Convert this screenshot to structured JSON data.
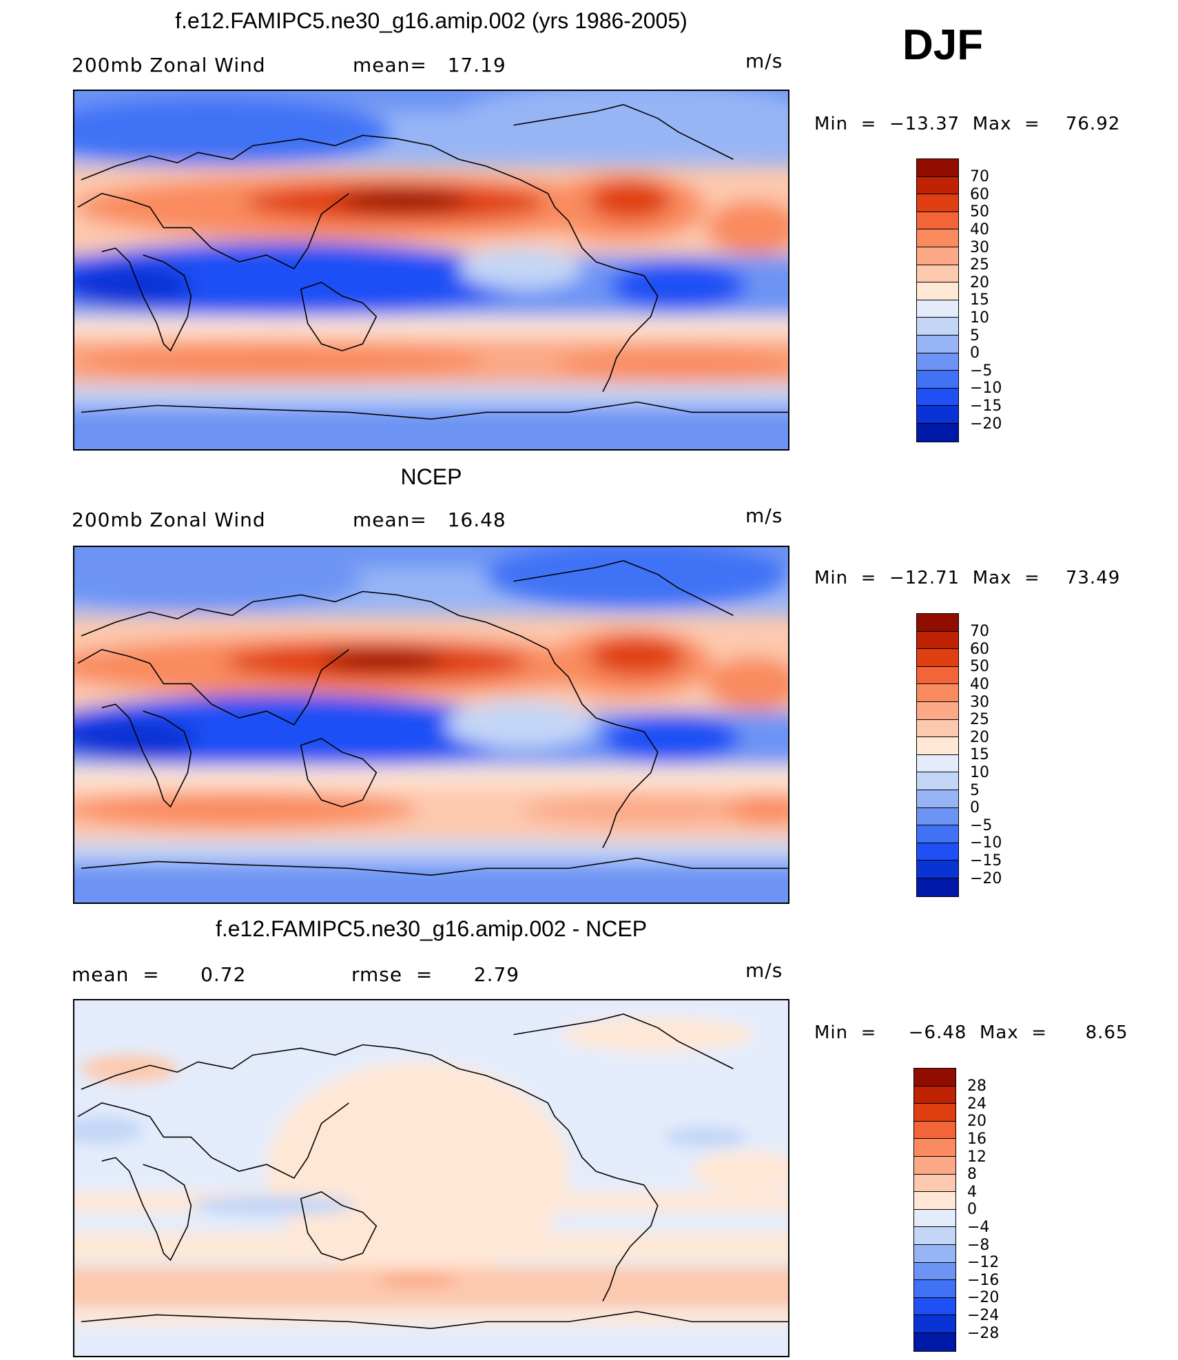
{
  "season": "DJF",
  "colors": {
    "levels_wind": [
      "#08007f",
      "#0018a8",
      "#0a33d6",
      "#1f4ff5",
      "#4172f5",
      "#6d94f4",
      "#97b5f5",
      "#c3d6f6",
      "#e4ecfb",
      "#ffe7d6",
      "#fdc9ae",
      "#fba987",
      "#f98b5f",
      "#f36438",
      "#e04011",
      "#c02204",
      "#900d00"
    ],
    "levels_diff": [
      "#08007f",
      "#0018a8",
      "#0a33d6",
      "#1f4ff5",
      "#4172f5",
      "#6d94f4",
      "#97b5f5",
      "#c3d6f6",
      "#e4ecfb",
      "#ffe7d6",
      "#fdc9ae",
      "#fba987",
      "#f98b5f",
      "#f36438",
      "#e04011",
      "#c02204",
      "#900d00"
    ]
  },
  "panels": [
    {
      "title": "f.e12.FAMIPC5.ne30_g16.amip.002 (yrs 1986-2005)",
      "left_label": "200mb Zonal Wind",
      "mid_label": "mean=   17.19",
      "units": "m/s",
      "minmax": "Min  =  −13.37  Max  =    76.92",
      "colorbar": [
        "70",
        "60",
        "50",
        "40",
        "30",
        "25",
        "20",
        "15",
        "10",
        "5",
        "0",
        "−5",
        "−10",
        "−15",
        "−20"
      ]
    },
    {
      "title": "NCEP",
      "left_label": "200mb Zonal Wind",
      "mid_label": "mean=   16.48",
      "units": "m/s",
      "minmax": "Min  =  −12.71  Max  =    73.49",
      "colorbar": [
        "70",
        "60",
        "50",
        "40",
        "30",
        "25",
        "20",
        "15",
        "10",
        "5",
        "0",
        "−5",
        "−10",
        "−15",
        "−20"
      ]
    },
    {
      "title": "f.e12.FAMIPC5.ne30_g16.amip.002 - NCEP",
      "left_label": "mean  =      0.72",
      "mid_label": "rmse  =      2.79",
      "units": "m/s",
      "minmax": "Min  =     −6.48  Max  =      8.65",
      "colorbar": [
        "28",
        "24",
        "20",
        "16",
        "12",
        "8",
        "4",
        "0",
        "−4",
        "−8",
        "−12",
        "−16",
        "−20",
        "−24",
        "−28"
      ]
    }
  ]
}
